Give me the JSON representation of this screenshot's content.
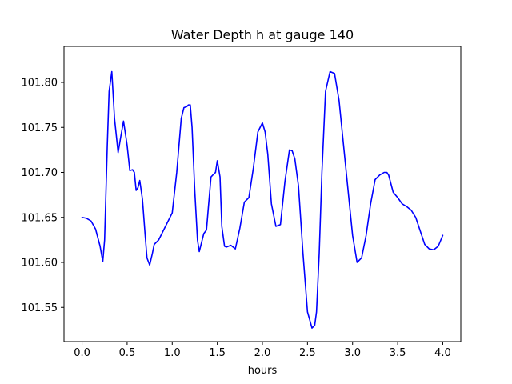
{
  "chart_data": {
    "type": "line",
    "title": "Water Depth h at gauge 140",
    "xlabel": "hours",
    "ylabel": "",
    "xlim": [
      -0.2,
      4.2
    ],
    "ylim": [
      101.512,
      101.84
    ],
    "xticks": [
      0.0,
      0.5,
      1.0,
      1.5,
      2.0,
      2.5,
      3.0,
      3.5,
      4.0
    ],
    "xtick_labels": [
      "0.0",
      "0.5",
      "1.0",
      "1.5",
      "2.0",
      "2.5",
      "3.0",
      "3.5",
      "4.0"
    ],
    "yticks": [
      101.55,
      101.6,
      101.65,
      101.7,
      101.75,
      101.8
    ],
    "ytick_labels": [
      "101.55",
      "101.60",
      "101.65",
      "101.70",
      "101.75",
      "101.80"
    ],
    "grid": false,
    "legend": "none",
    "series": [
      {
        "color": "#0000ff",
        "x": [
          0.0,
          0.05,
          0.1,
          0.15,
          0.2,
          0.23,
          0.25,
          0.28,
          0.3,
          0.33,
          0.36,
          0.4,
          0.43,
          0.46,
          0.5,
          0.53,
          0.56,
          0.58,
          0.6,
          0.62,
          0.64,
          0.67,
          0.7,
          0.72,
          0.75,
          0.78,
          0.8,
          0.85,
          0.9,
          0.95,
          1.0,
          1.05,
          1.1,
          1.13,
          1.16,
          1.18,
          1.2,
          1.22,
          1.25,
          1.28,
          1.3,
          1.32,
          1.35,
          1.38,
          1.4,
          1.43,
          1.45,
          1.48,
          1.5,
          1.53,
          1.55,
          1.58,
          1.6,
          1.65,
          1.7,
          1.75,
          1.8,
          1.85,
          1.9,
          1.95,
          2.0,
          2.03,
          2.06,
          2.1,
          2.15,
          2.2,
          2.25,
          2.3,
          2.33,
          2.36,
          2.4,
          2.45,
          2.5,
          2.55,
          2.58,
          2.6,
          2.63,
          2.66,
          2.7,
          2.75,
          2.8,
          2.85,
          2.9,
          2.95,
          3.0,
          3.05,
          3.1,
          3.15,
          3.2,
          3.25,
          3.3,
          3.35,
          3.38,
          3.4,
          3.45,
          3.5,
          3.55,
          3.6,
          3.65,
          3.7,
          3.75,
          3.8,
          3.85,
          3.9,
          3.95,
          4.0
        ],
        "y": [
          101.65,
          101.649,
          101.646,
          101.637,
          101.618,
          101.601,
          101.625,
          101.73,
          101.79,
          101.812,
          101.76,
          101.722,
          101.74,
          101.757,
          101.73,
          101.702,
          101.703,
          101.7,
          101.68,
          101.683,
          101.691,
          101.67,
          101.63,
          101.605,
          101.597,
          101.61,
          101.62,
          101.625,
          101.635,
          101.645,
          101.655,
          101.7,
          101.76,
          101.772,
          101.773,
          101.775,
          101.775,
          101.75,
          101.68,
          101.625,
          101.612,
          101.62,
          101.632,
          101.636,
          101.66,
          101.695,
          101.697,
          101.7,
          101.713,
          101.695,
          101.64,
          101.618,
          101.617,
          101.619,
          101.615,
          101.638,
          101.667,
          101.672,
          101.705,
          101.745,
          101.755,
          101.745,
          101.72,
          101.665,
          101.64,
          101.642,
          101.69,
          101.725,
          101.724,
          101.715,
          101.685,
          101.61,
          101.545,
          101.527,
          101.53,
          101.545,
          101.61,
          101.7,
          101.79,
          101.812,
          101.81,
          101.78,
          101.73,
          101.68,
          101.63,
          101.6,
          101.605,
          101.63,
          101.665,
          101.692,
          101.697,
          101.7,
          101.7,
          101.697,
          101.678,
          101.672,
          101.665,
          101.662,
          101.658,
          101.65,
          101.635,
          101.62,
          101.615,
          101.614,
          101.618,
          101.63
        ]
      }
    ]
  }
}
